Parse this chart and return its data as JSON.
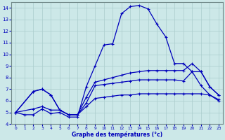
{
  "bg_color": "#cce8e8",
  "grid_color": "#aacccc",
  "line_color": "#0000bb",
  "xlabel": "Graphe des températures (°c)",
  "xlim": [
    -0.5,
    23.5
  ],
  "ylim": [
    4,
    14.5
  ],
  "yticks": [
    4,
    5,
    6,
    7,
    8,
    9,
    10,
    11,
    12,
    13,
    14
  ],
  "xticks": [
    0,
    1,
    2,
    3,
    4,
    5,
    6,
    7,
    8,
    9,
    10,
    11,
    12,
    13,
    14,
    15,
    16,
    17,
    18,
    19,
    20,
    21,
    22,
    23
  ],
  "line1_x": [
    0,
    1,
    2,
    3,
    4,
    5,
    6,
    7,
    8,
    9,
    10,
    11,
    12,
    13,
    14,
    15,
    16,
    17,
    18,
    19,
    20,
    21,
    22,
    23
  ],
  "line1_y": [
    5.0,
    4.8,
    4.8,
    5.3,
    4.9,
    5.0,
    4.6,
    4.6,
    7.2,
    9.0,
    10.8,
    10.9,
    13.5,
    14.1,
    14.2,
    13.9,
    12.6,
    11.5,
    9.2,
    9.2,
    8.5,
    7.3,
    6.5,
    6.1
  ],
  "line2_x": [
    0,
    2,
    3,
    4,
    5,
    6,
    7,
    8,
    9,
    10,
    11,
    12,
    13,
    14,
    15,
    16,
    17,
    18,
    19,
    20,
    21,
    22,
    23
  ],
  "line2_y": [
    5.0,
    6.8,
    7.0,
    6.5,
    5.2,
    4.8,
    4.8,
    5.8,
    7.3,
    7.4,
    7.5,
    7.6,
    7.7,
    7.8,
    7.8,
    7.8,
    7.8,
    7.8,
    7.7,
    8.5,
    8.5,
    7.2,
    6.5
  ],
  "line3_x": [
    0,
    2,
    3,
    4,
    5,
    6,
    7,
    8,
    9,
    10,
    11,
    12,
    13,
    14,
    15,
    16,
    17,
    18,
    19,
    20,
    21,
    22,
    23
  ],
  "line3_y": [
    5.0,
    6.8,
    7.0,
    6.5,
    5.2,
    4.8,
    4.8,
    6.3,
    7.6,
    7.8,
    8.0,
    8.2,
    8.4,
    8.5,
    8.6,
    8.6,
    8.6,
    8.6,
    8.6,
    9.2,
    8.5,
    7.2,
    6.5
  ],
  "line4_x": [
    0,
    2,
    3,
    4,
    5,
    6,
    7,
    8,
    9,
    10,
    11,
    12,
    13,
    14,
    15,
    16,
    17,
    18,
    19,
    20,
    21,
    22,
    23
  ],
  "line4_y": [
    5.0,
    5.3,
    5.5,
    5.2,
    5.2,
    4.8,
    4.8,
    5.5,
    6.2,
    6.3,
    6.4,
    6.5,
    6.5,
    6.6,
    6.6,
    6.6,
    6.6,
    6.6,
    6.6,
    6.6,
    6.6,
    6.5,
    6.0
  ]
}
